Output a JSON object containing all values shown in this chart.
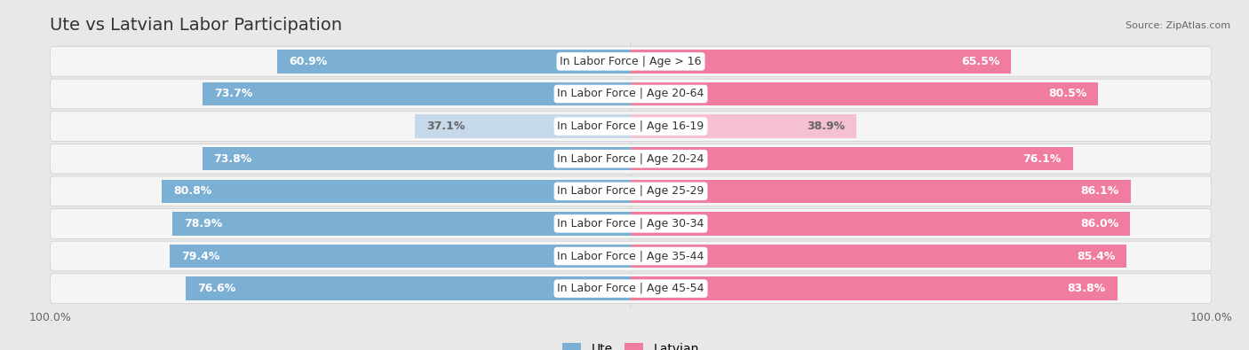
{
  "title": "Ute vs Latvian Labor Participation",
  "source": "Source: ZipAtlas.com",
  "categories": [
    "In Labor Force | Age > 16",
    "In Labor Force | Age 20-64",
    "In Labor Force | Age 16-19",
    "In Labor Force | Age 20-24",
    "In Labor Force | Age 25-29",
    "In Labor Force | Age 30-34",
    "In Labor Force | Age 35-44",
    "In Labor Force | Age 45-54"
  ],
  "ute_values": [
    60.9,
    73.7,
    37.1,
    73.8,
    80.8,
    78.9,
    79.4,
    76.6
  ],
  "latvian_values": [
    65.5,
    80.5,
    38.9,
    76.1,
    86.1,
    86.0,
    85.4,
    83.8
  ],
  "ute_color_normal": "#7bafd4",
  "ute_color_light": "#c5d9ea",
  "latvian_color_normal": "#f07ca0",
  "latvian_color_light": "#f5c0d0",
  "light_rows": [
    2
  ],
  "bg_color": "#e8e8e8",
  "row_bg": "#f5f5f5",
  "bar_height": 0.72,
  "max_val": 100.0,
  "title_fontsize": 14,
  "label_fontsize": 9,
  "value_fontsize": 9,
  "tick_fontsize": 9,
  "legend_fontsize": 10
}
